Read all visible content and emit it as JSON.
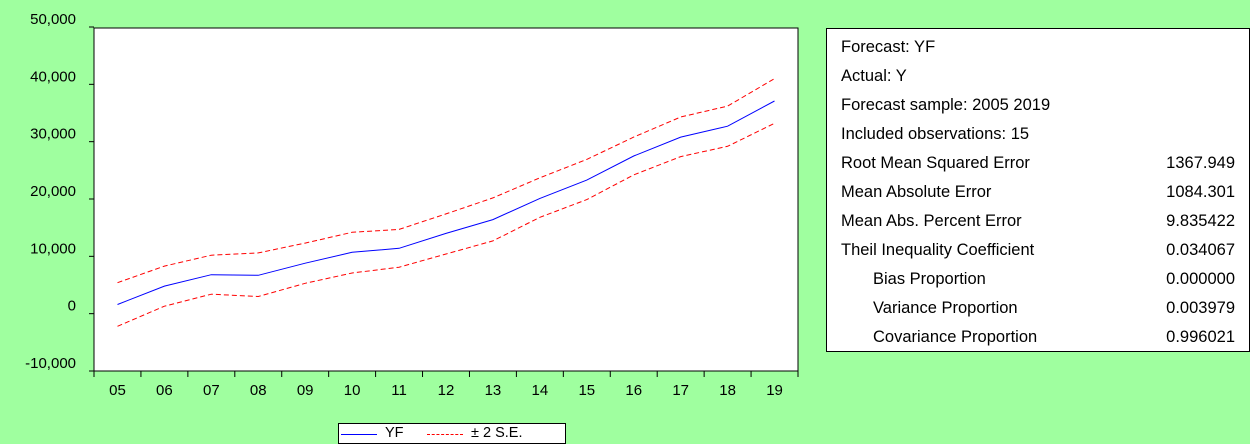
{
  "chart_data": {
    "type": "line",
    "x": [
      "05",
      "06",
      "07",
      "08",
      "09",
      "10",
      "11",
      "12",
      "13",
      "14",
      "15",
      "16",
      "17",
      "18",
      "19"
    ],
    "yticks": [
      "50,000",
      "40,000",
      "30,000",
      "20,000",
      "10,000",
      "0",
      "-10,000"
    ],
    "ylim": [
      -10000,
      50000
    ],
    "grid": false,
    "legend_position": "bottom",
    "series": [
      {
        "name": "YF",
        "color": "#0000ff",
        "style": "solid",
        "values": [
          1600,
          4800,
          6800,
          6700,
          8800,
          10700,
          11400,
          14000,
          16400,
          20100,
          23300,
          27500,
          30800,
          32700,
          37100
        ]
      },
      {
        "name": "± 2 S.E.",
        "color": "#ff0000",
        "style": "dashed",
        "values": [
          5400,
          8300,
          10200,
          10600,
          12300,
          14200,
          14700,
          17400,
          20200,
          23700,
          26900,
          30800,
          34300,
          36200,
          41000
        ]
      },
      {
        "name": "± 2 S.E. lower",
        "color": "#ff0000",
        "style": "dashed",
        "values": [
          -2200,
          1300,
          3400,
          3000,
          5300,
          7100,
          8100,
          10400,
          12700,
          16800,
          19900,
          24200,
          27400,
          29200,
          33200
        ]
      }
    ]
  },
  "stats": [
    {
      "label": "Forecast: YF",
      "value": ""
    },
    {
      "label": "Actual: Y",
      "value": ""
    },
    {
      "label": "Forecast sample: 2005 2019",
      "value": ""
    },
    {
      "label": "Included observations: 15",
      "value": ""
    },
    {
      "label": "Root Mean Squared Error",
      "value": "1367.949"
    },
    {
      "label": "Mean Absolute Error",
      "value": "1084.301"
    },
    {
      "label": "Mean Abs. Percent Error",
      "value": "9.835422"
    },
    {
      "label": "Theil Inequality Coefficient",
      "value": "0.034067"
    },
    {
      "label": "Bias Proportion",
      "value": "0.000000"
    },
    {
      "label": "Variance Proportion",
      "value": "0.003979"
    },
    {
      "label": "Covariance Proportion",
      "value": "0.996021"
    }
  ],
  "legend": {
    "items": [
      {
        "label": "YF"
      },
      {
        "label": "± 2 S.E."
      }
    ]
  }
}
